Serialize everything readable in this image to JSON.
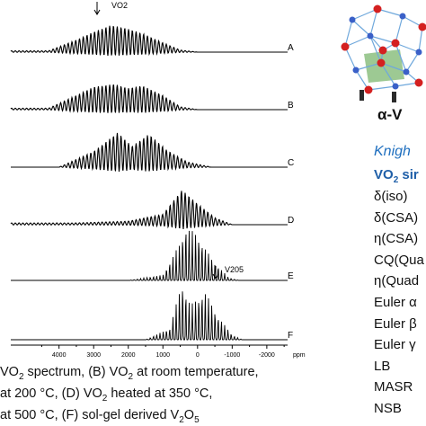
{
  "chart_data": {
    "type": "line",
    "x_unit": "ppm",
    "x_ticks": [
      4000,
      3000,
      2000,
      1000,
      0,
      -1000,
      -2000
    ],
    "xlim": [
      4900,
      -2600
    ],
    "reversed_x": true,
    "series": [
      {
        "label": "A",
        "center": 2050,
        "envelope": [
          [
            4300,
            0.05
          ],
          [
            3500,
            0.45
          ],
          [
            3000,
            0.75
          ],
          [
            2500,
            1.0
          ],
          [
            2100,
            0.9
          ],
          [
            1600,
            0.7
          ],
          [
            1000,
            0.35
          ],
          [
            500,
            0.08
          ],
          [
            0,
            0.0
          ]
        ]
      },
      {
        "label": "B",
        "center": 2000,
        "envelope": [
          [
            4300,
            0.05
          ],
          [
            3500,
            0.5
          ],
          [
            3000,
            0.8
          ],
          [
            2400,
            0.9
          ],
          [
            2000,
            0.75
          ],
          [
            1600,
            0.85
          ],
          [
            1000,
            0.5
          ],
          [
            500,
            0.1
          ],
          [
            0,
            0.0
          ]
        ]
      },
      {
        "label": "C",
        "center": 1800,
        "envelope": [
          [
            4000,
            0.0
          ],
          [
            3000,
            0.45
          ],
          [
            2300,
            1.0
          ],
          [
            1900,
            0.6
          ],
          [
            1400,
            0.95
          ],
          [
            900,
            0.5
          ],
          [
            300,
            0.15
          ],
          [
            -400,
            0.0
          ]
        ]
      },
      {
        "label": "D",
        "center": 400,
        "envelope": [
          [
            3500,
            0.05
          ],
          [
            2000,
            0.1
          ],
          [
            1000,
            0.3
          ],
          [
            450,
            1.0
          ],
          [
            0,
            0.6
          ],
          [
            -500,
            0.2
          ],
          [
            -1000,
            0.0
          ]
        ]
      },
      {
        "label": "E",
        "center": 400,
        "envelope": [
          [
            2000,
            0.0
          ],
          [
            1000,
            0.1
          ],
          [
            500,
            0.7
          ],
          [
            350,
            1.0
          ],
          [
            0,
            0.85
          ],
          [
            -400,
            0.4
          ],
          [
            -900,
            0.05
          ],
          [
            -1200,
            0.0
          ]
        ]
      },
      {
        "label": "F",
        "center": 400,
        "envelope": [
          [
            1500,
            0.0
          ],
          [
            800,
            0.2
          ],
          [
            450,
            1.0
          ],
          [
            200,
            0.6
          ],
          [
            -200,
            0.85
          ],
          [
            -600,
            0.4
          ],
          [
            -1000,
            0.08
          ],
          [
            -1300,
            0.0
          ]
        ]
      }
    ],
    "annotations": [
      {
        "text": "VO2",
        "at_ppm": 2100,
        "series": "A"
      },
      {
        "text": "V205",
        "at_ppm": -550,
        "series": "F"
      }
    ]
  },
  "right_panel": {
    "alpha_label": "α-V",
    "knight_label": "Knigh",
    "vo2_label_main": "VO",
    "vo2_label_sub": "2",
    "vo2_label_rest": " sir",
    "params": [
      "δ(iso)",
      "δ(CSA)",
      "η(CSA)",
      "CQ(Qua",
      "η(Quad",
      "Euler α",
      "Euler β",
      "Euler γ",
      "LB",
      "MASR",
      "NSB"
    ]
  },
  "caption": {
    "line1_pre": "VO",
    "line1_sub": "2",
    "line1_mid": " spectrum,   (B) VO",
    "line1_sub2": "2",
    "line1_post": " at room temperature,",
    "line2": " at 200 °C,  (D) VO",
    "line2_sub": "2",
    "line2_post": " heated at 350 °C,",
    "line3": " at 500 °C,  (F) sol-gel derived V",
    "line3_sub": "2",
    "line3_mid": "O",
    "line3_sub2": "5"
  },
  "colors": {
    "trace": "#000000",
    "knight": "#1f6fbf",
    "vo2_header": "#1f5fa8",
    "crystal_red": "#d42020",
    "crystal_blue": "#3a60c8",
    "crystal_bond": "#6fa8dc",
    "crystal_green": "#4d9d3a"
  }
}
